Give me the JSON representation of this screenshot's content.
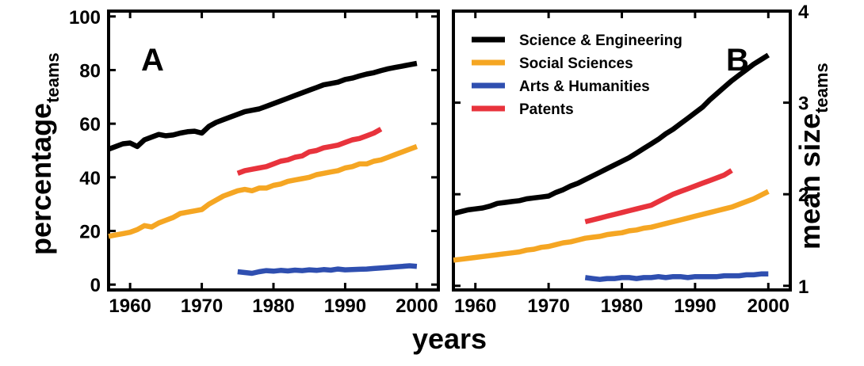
{
  "chart_data": [
    {
      "type": "line",
      "panel_label": "A",
      "xlabel": "years",
      "ylabel": "percentage",
      "ylabel_sub": "teams",
      "xlim": [
        1957,
        2003
      ],
      "ylim": [
        -2,
        102
      ],
      "xticks": [
        1960,
        1970,
        1980,
        1990,
        2000
      ],
      "yticks": [
        0,
        20,
        40,
        60,
        80,
        100
      ],
      "series": [
        {
          "name": "Science & Engineering",
          "color": "#000000",
          "x": [
            1957,
            1958,
            1959,
            1960,
            1961,
            1962,
            1963,
            1964,
            1965,
            1966,
            1967,
            1968,
            1969,
            1970,
            1971,
            1972,
            1973,
            1974,
            1975,
            1976,
            1977,
            1978,
            1979,
            1980,
            1981,
            1982,
            1983,
            1984,
            1985,
            1986,
            1987,
            1988,
            1989,
            1990,
            1991,
            1992,
            1993,
            1994,
            1995,
            1996,
            1997,
            1998,
            1999,
            2000
          ],
          "y": [
            50.5,
            51.5,
            52.5,
            52.8,
            51.5,
            54,
            55,
            56,
            55.5,
            55.8,
            56.5,
            57,
            57.2,
            56.5,
            59,
            60.5,
            61.5,
            62.5,
            63.5,
            64.5,
            65,
            65.5,
            66.5,
            67.5,
            68.5,
            69.5,
            70.5,
            71.5,
            72.5,
            73.5,
            74.5,
            75,
            75.5,
            76.5,
            77,
            77.8,
            78.5,
            79,
            79.8,
            80.5,
            81,
            81.5,
            82,
            82.5
          ]
        },
        {
          "name": "Social Sciences",
          "color": "#f5a623",
          "x": [
            1957,
            1958,
            1959,
            1960,
            1961,
            1962,
            1963,
            1964,
            1965,
            1966,
            1967,
            1968,
            1969,
            1970,
            1971,
            1972,
            1973,
            1974,
            1975,
            1976,
            1977,
            1978,
            1979,
            1980,
            1981,
            1982,
            1983,
            1984,
            1985,
            1986,
            1987,
            1988,
            1989,
            1990,
            1991,
            1992,
            1993,
            1994,
            1995,
            1996,
            1997,
            1998,
            1999,
            2000
          ],
          "y": [
            18,
            18.5,
            19,
            19.5,
            20.5,
            22,
            21.5,
            23,
            24,
            25,
            26.5,
            27,
            27.5,
            28,
            30,
            31.5,
            33,
            34,
            35,
            35.5,
            35,
            36,
            36,
            37,
            37.5,
            38.5,
            39,
            39.5,
            40,
            41,
            41.5,
            42,
            42.5,
            43.5,
            44,
            45,
            45,
            46,
            46.5,
            47.5,
            48.5,
            49.5,
            50.5,
            51.5
          ]
        },
        {
          "name": "Arts & Humanities",
          "color": "#2f4fb0",
          "x": [
            1975,
            1976,
            1977,
            1978,
            1979,
            1980,
            1981,
            1982,
            1983,
            1984,
            1985,
            1986,
            1987,
            1988,
            1989,
            1990,
            1991,
            1992,
            1993,
            1994,
            1995,
            1996,
            1997,
            1998,
            1999,
            2000
          ],
          "y": [
            4.8,
            4.5,
            4.2,
            4.8,
            5.2,
            5.0,
            5.3,
            5.1,
            5.4,
            5.2,
            5.5,
            5.3,
            5.6,
            5.4,
            5.8,
            5.5,
            5.6,
            5.7,
            5.8,
            6.0,
            6.2,
            6.4,
            6.6,
            6.8,
            7.0,
            6.8
          ]
        },
        {
          "name": "Patents",
          "color": "#e8333c",
          "x": [
            1975,
            1976,
            1977,
            1978,
            1979,
            1980,
            1981,
            1982,
            1983,
            1984,
            1985,
            1986,
            1987,
            1988,
            1989,
            1990,
            1991,
            1992,
            1993,
            1994,
            1995
          ],
          "y": [
            41.5,
            42.5,
            43,
            43.5,
            44,
            45,
            46,
            46.5,
            47.5,
            48,
            49.5,
            50,
            51,
            51.5,
            52,
            53,
            54,
            54.5,
            55.5,
            56.5,
            58
          ]
        }
      ]
    },
    {
      "type": "line",
      "panel_label": "B",
      "xlabel": "years",
      "ylabel": "mean size",
      "ylabel_sub": "teams",
      "ylabel_side": "right",
      "xlim": [
        1957,
        2003
      ],
      "ylim": [
        0.955,
        4.0
      ],
      "xticks": [
        1960,
        1970,
        1980,
        1990,
        2000
      ],
      "yticks": [
        1,
        2,
        3,
        4
      ],
      "legend": [
        "Science & Engineering",
        "Social Sciences",
        "Arts & Humanities",
        "Patents"
      ],
      "legend_placement": "top-left",
      "series": [
        {
          "name": "Science & Engineering",
          "color": "#000000",
          "x": [
            1957,
            1958,
            1959,
            1960,
            1961,
            1962,
            1963,
            1964,
            1965,
            1966,
            1967,
            1968,
            1969,
            1970,
            1971,
            1972,
            1973,
            1974,
            1975,
            1976,
            1977,
            1978,
            1979,
            1980,
            1981,
            1982,
            1983,
            1984,
            1985,
            1986,
            1987,
            1988,
            1989,
            1990,
            1991,
            1992,
            1993,
            1994,
            1995,
            1996,
            1997,
            1998,
            1999,
            2000
          ],
          "y": [
            1.79,
            1.81,
            1.83,
            1.84,
            1.85,
            1.87,
            1.9,
            1.91,
            1.92,
            1.93,
            1.95,
            1.96,
            1.97,
            1.98,
            2.02,
            2.05,
            2.09,
            2.12,
            2.16,
            2.2,
            2.24,
            2.28,
            2.32,
            2.36,
            2.4,
            2.45,
            2.5,
            2.55,
            2.6,
            2.66,
            2.71,
            2.77,
            2.83,
            2.89,
            2.95,
            3.03,
            3.1,
            3.17,
            3.24,
            3.3,
            3.36,
            3.42,
            3.47,
            3.52
          ]
        },
        {
          "name": "Social Sciences",
          "color": "#f5a623",
          "x": [
            1957,
            1958,
            1959,
            1960,
            1961,
            1962,
            1963,
            1964,
            1965,
            1966,
            1967,
            1968,
            1969,
            1970,
            1971,
            1972,
            1973,
            1974,
            1975,
            1976,
            1977,
            1978,
            1979,
            1980,
            1981,
            1982,
            1983,
            1984,
            1985,
            1986,
            1987,
            1988,
            1989,
            1990,
            1991,
            1992,
            1993,
            1994,
            1995,
            1996,
            1997,
            1998,
            1999,
            2000
          ],
          "y": [
            1.28,
            1.29,
            1.3,
            1.31,
            1.32,
            1.33,
            1.34,
            1.35,
            1.36,
            1.37,
            1.39,
            1.4,
            1.42,
            1.43,
            1.45,
            1.47,
            1.48,
            1.5,
            1.52,
            1.53,
            1.54,
            1.56,
            1.57,
            1.58,
            1.6,
            1.61,
            1.63,
            1.64,
            1.66,
            1.68,
            1.7,
            1.72,
            1.74,
            1.76,
            1.78,
            1.8,
            1.82,
            1.84,
            1.86,
            1.89,
            1.92,
            1.95,
            1.99,
            2.03
          ]
        },
        {
          "name": "Arts & Humanities",
          "color": "#2f4fb0",
          "x": [
            1975,
            1976,
            1977,
            1978,
            1979,
            1980,
            1981,
            1982,
            1983,
            1984,
            1985,
            1986,
            1987,
            1988,
            1989,
            1990,
            1991,
            1992,
            1993,
            1994,
            1995,
            1996,
            1997,
            1998,
            1999,
            2000
          ],
          "y": [
            1.09,
            1.08,
            1.07,
            1.08,
            1.08,
            1.09,
            1.09,
            1.08,
            1.09,
            1.09,
            1.1,
            1.09,
            1.1,
            1.1,
            1.09,
            1.1,
            1.1,
            1.1,
            1.1,
            1.11,
            1.11,
            1.11,
            1.12,
            1.12,
            1.13,
            1.13
          ]
        },
        {
          "name": "Patents",
          "color": "#e8333c",
          "x": [
            1975,
            1976,
            1977,
            1978,
            1979,
            1980,
            1981,
            1982,
            1983,
            1984,
            1985,
            1986,
            1987,
            1988,
            1989,
            1990,
            1991,
            1992,
            1993,
            1994,
            1995
          ],
          "y": [
            1.7,
            1.72,
            1.74,
            1.76,
            1.78,
            1.8,
            1.82,
            1.84,
            1.86,
            1.88,
            1.92,
            1.96,
            2.0,
            2.03,
            2.06,
            2.09,
            2.12,
            2.15,
            2.18,
            2.21,
            2.26
          ]
        }
      ]
    }
  ]
}
